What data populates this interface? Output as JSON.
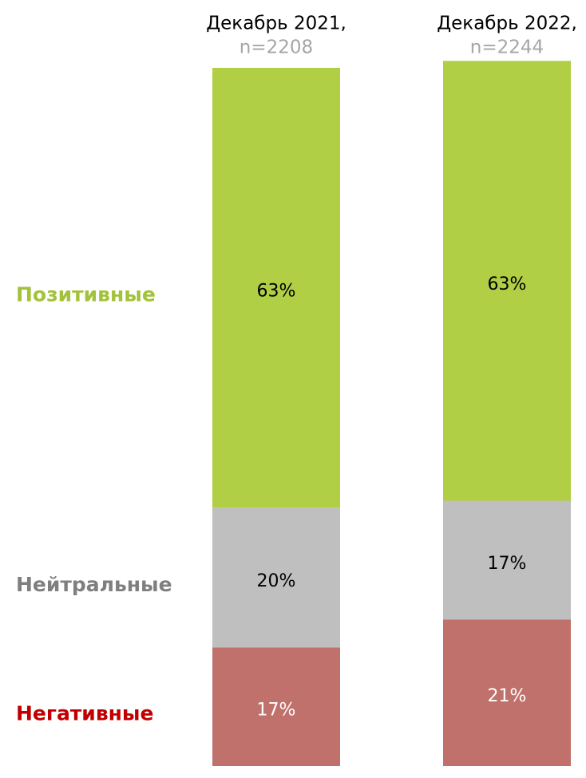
{
  "chart_data": {
    "type": "stacked_bar",
    "categories": [
      "Декабрь 2021,",
      "Декабрь 2022,"
    ],
    "sample_sizes": [
      "n=2208",
      "n=2244"
    ],
    "ylim": [
      0,
      100
    ],
    "series": [
      {
        "name": "Негативные",
        "color": "#c0716b",
        "label_color": "#c00000",
        "value_label_color": "#ffffff",
        "values": [
          17,
          21
        ],
        "value_labels": [
          "17%",
          "21%"
        ]
      },
      {
        "name": "Нейтральные",
        "color": "#bfbfbf",
        "label_color": "#7f7f7f",
        "value_label_color": "#000000",
        "values": [
          20,
          17
        ],
        "value_labels": [
          "20%",
          "17%"
        ]
      },
      {
        "name": "Позитивные",
        "color": "#b0cf44",
        "label_color": "#a3c13a",
        "value_label_color": "#000000",
        "values": [
          63,
          63
        ],
        "value_labels": [
          "63%",
          "63%"
        ]
      }
    ]
  }
}
